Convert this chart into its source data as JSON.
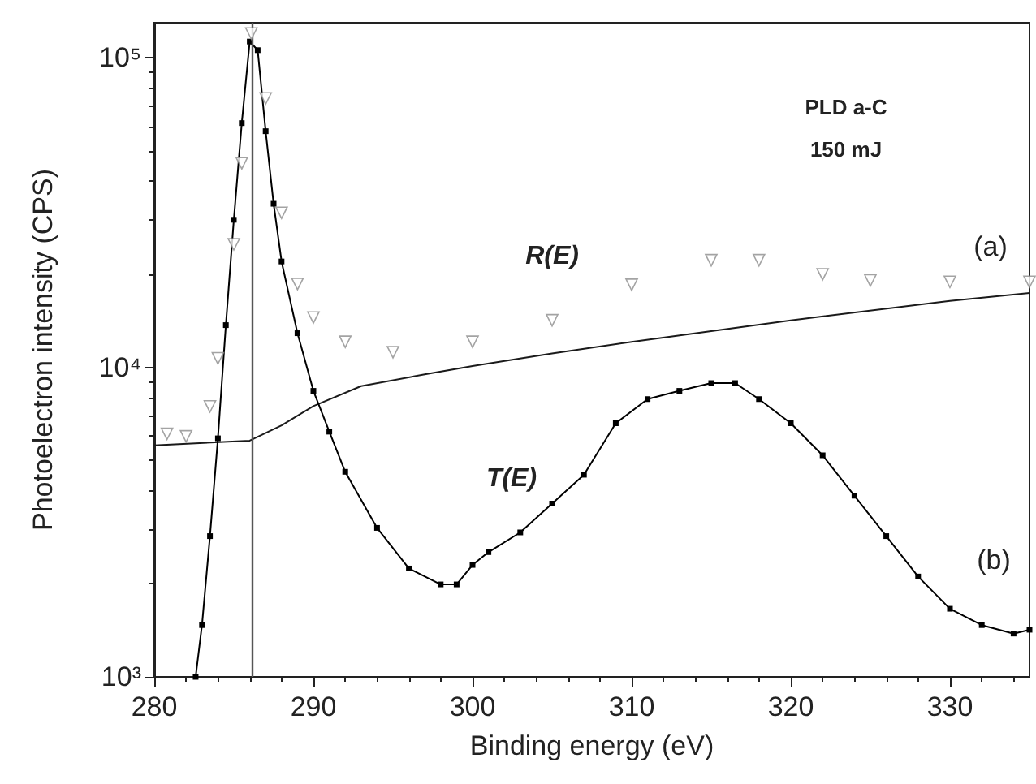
{
  "chart_data": {
    "type": "line",
    "xlabel": "Binding energy (eV)",
    "ylabel": "Photoelectron intensity (CPS)",
    "xlim": [
      280,
      335
    ],
    "xticks": [
      280,
      290,
      300,
      310,
      320,
      330
    ],
    "ylim": [
      1000,
      130000
    ],
    "yticks": [
      {
        "value": 1000,
        "label": "10³"
      },
      {
        "value": 10000,
        "label": "10⁴"
      },
      {
        "value": 100000,
        "label": "10⁵"
      }
    ],
    "log": "y",
    "grid": false,
    "series": [
      {
        "type": "scatter",
        "marker": "triangle",
        "color": "#8c8c8c",
        "x": [
          280.8,
          282,
          283.5,
          284,
          285,
          285.5,
          286.1,
          287,
          288,
          289,
          290,
          292,
          295,
          300,
          305,
          310,
          315,
          318,
          322,
          325,
          330,
          335
        ],
        "values": [
          6100,
          5990,
          7480,
          10700,
          25000,
          45700,
          120000,
          74000,
          31600,
          18600,
          14500,
          12100,
          11200,
          12100,
          14200,
          18500,
          22200,
          22200,
          20000,
          19100,
          18900,
          18900
        ]
      },
      {
        "marker": "none",
        "color": "#1a1a1a",
        "x": [
          280,
          286,
          288,
          290,
          293,
          297,
          300,
          305,
          310,
          320,
          330,
          335
        ],
        "values": [
          5600,
          5800,
          6500,
          7500,
          8700,
          9500,
          10100,
          11100,
          12100,
          14200,
          16400,
          17400
        ]
      },
      {
        "marker": "square",
        "color": "#000000",
        "x": [
          282.6,
          283,
          283.5,
          284,
          284.5,
          285,
          285.5,
          286,
          286.5,
          287,
          287.5,
          288,
          289,
          290,
          291,
          292,
          294,
          296,
          298,
          299,
          300,
          301,
          303,
          305,
          307,
          309,
          311,
          313,
          315,
          316.5,
          318,
          320,
          322,
          324,
          326,
          328,
          330,
          332,
          334,
          335
        ],
        "values": [
          1000,
          1470,
          2850,
          5900,
          13700,
          30000,
          61600,
          113000,
          106000,
          58000,
          33800,
          22000,
          12900,
          8400,
          6200,
          4600,
          3030,
          2240,
          1990,
          1990,
          2300,
          2530,
          2930,
          3630,
          4500,
          6600,
          7900,
          8400,
          8900,
          8900,
          7900,
          6600,
          5200,
          3850,
          2850,
          2110,
          1660,
          1470,
          1380,
          1420
        ]
      }
    ],
    "ref_lines": [
      {
        "axis": "x",
        "value": 286.1,
        "color": "#555555"
      }
    ],
    "annotations": [
      "PLD a-C",
      "150 mJ",
      "R(E)",
      "T(E)",
      "(a)",
      "(b)"
    ]
  }
}
